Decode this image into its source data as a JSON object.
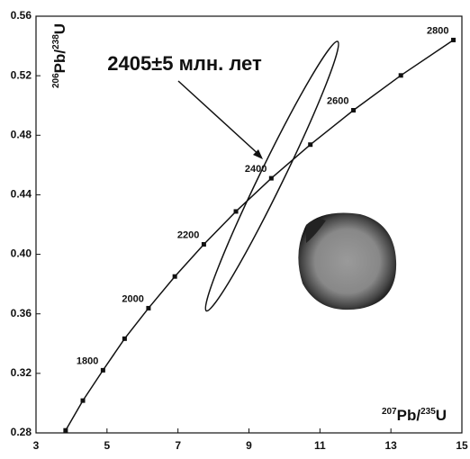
{
  "chart_data": {
    "type": "concordia",
    "xlim": [
      3,
      15
    ],
    "xticks": [
      3,
      5,
      7,
      9,
      11,
      13,
      15
    ],
    "ylim": [
      0.28,
      0.56
    ],
    "yticks": [
      0.28,
      0.32,
      0.36,
      {
        "value": 0.4,
        "label": "0.40"
      },
      0.44,
      0.48,
      0.52,
      0.56
    ],
    "xlabel_parts": [
      "207",
      "Pb/",
      "235",
      "U"
    ],
    "ylabel_parts": [
      "206",
      "Pb/",
      "238",
      "U"
    ],
    "series": [
      {
        "color": "#111111",
        "x": [
          3.834,
          4.32,
          4.887,
          5.496,
          6.169,
          6.911,
          7.729,
          8.633,
          9.63,
          10.73,
          11.944,
          13.28,
          14.76
        ],
        "values": [
          0.2817,
          0.3017,
          0.3221,
          0.3433,
          0.3638,
          0.3851,
          0.4067,
          0.4288,
          0.4511,
          0.4737,
          0.4968,
          0.5202,
          0.544
        ],
        "point_labels": [
          null,
          null,
          "1800",
          null,
          "2000",
          null,
          "2200",
          null,
          "2400",
          null,
          "2600",
          null,
          "2800"
        ]
      }
    ],
    "ellipse": {
      "x_ends": [
        7.8,
        11.5
      ],
      "y_ends": [
        0.362,
        0.543
      ],
      "x_half_width": 0.37
    },
    "annotation": "2405±5 млн. лет"
  }
}
